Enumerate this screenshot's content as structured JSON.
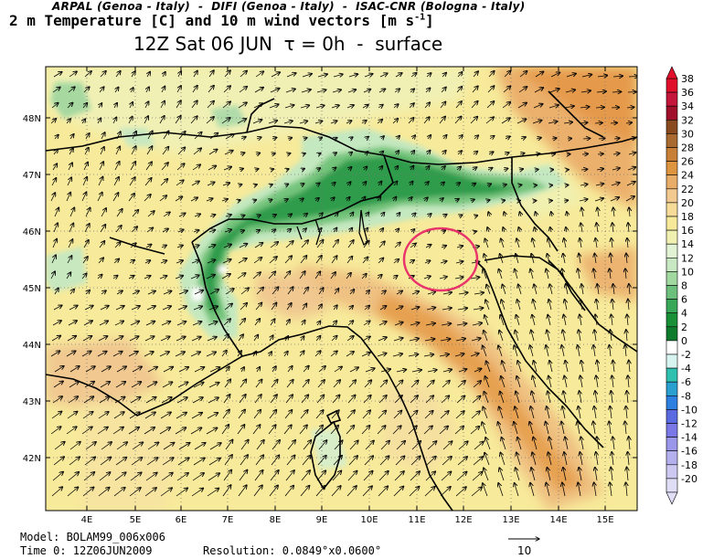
{
  "header": {
    "line1": "ARPAL (Genoa - Italy)  -  DIFI (Genoa - Italy)  -  ISAC-CNR (Bologna - Italy)",
    "line2": "2 m Temperature [C] and 10 m wind vectors [m s",
    "line2_sup": "-1",
    "line2_end": "]",
    "line3": "12Z Sat 06 JUN  τ = 0h  -  surface"
  },
  "map": {
    "lat_labels": [
      "48N",
      "47N",
      "46N",
      "45N",
      "44N",
      "43N",
      "42N"
    ],
    "lon_labels": [
      "4E",
      "5E",
      "6E",
      "7E",
      "8E",
      "9E",
      "10E",
      "11E",
      "12E",
      "13E",
      "14E",
      "15E"
    ],
    "highlight_color": "#e8336b"
  },
  "colorbar": {
    "labels": [
      "38",
      "36",
      "34",
      "32",
      "30",
      "28",
      "26",
      "24",
      "22",
      "20",
      "18",
      "16",
      "14",
      "12",
      "10",
      "8",
      "6",
      "4",
      "2",
      "0",
      "-2",
      "-4",
      "-6",
      "-8",
      "-10",
      "-12",
      "-14",
      "-16",
      "-18",
      "-20"
    ],
    "colors": [
      "#e0102c",
      "#c4153a",
      "#a0102a",
      "#8a4a20",
      "#a86a30",
      "#c88038",
      "#dd9540",
      "#e9ad6a",
      "#f2c98e",
      "#f6dc98",
      "#f6ea9a",
      "#f0f0b0",
      "#e2f2d4",
      "#c8e8c4",
      "#a0d8a0",
      "#6cc07c",
      "#38a858",
      "#189038",
      "#0e7c2c",
      "#ffffff",
      "#d8f4f0",
      "#30c0b0",
      "#2aa0d0",
      "#2e80e0",
      "#5a6ae0",
      "#7a78e6",
      "#9a96ea",
      "#b4b0ee",
      "#ccc8f2",
      "#e0ddf6"
    ]
  },
  "footer": {
    "model": "Model: BOLAM99_006x006",
    "time": "Time 0: 12Z06JUN2009",
    "resolution": "Resolution: 0.0849°x0.0600°",
    "ref_vector": "10"
  }
}
